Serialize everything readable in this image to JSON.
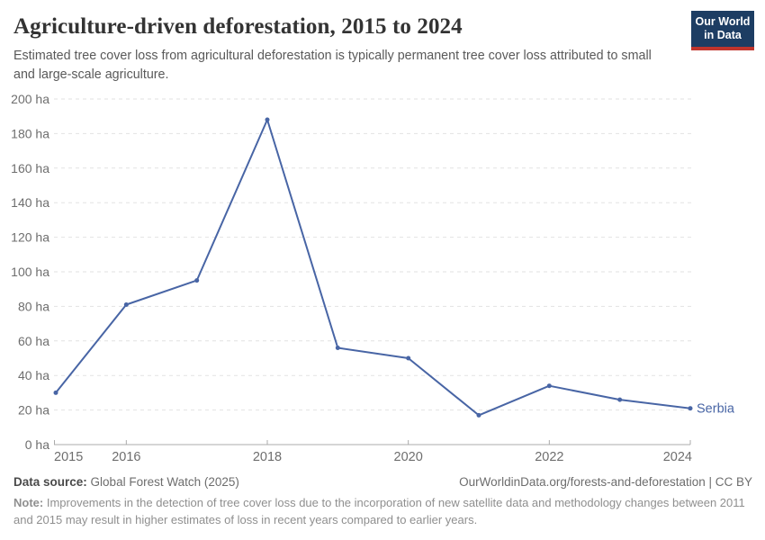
{
  "header": {
    "title": "Agriculture-driven deforestation, 2015 to 2024",
    "subtitle": "Estimated tree cover loss from agricultural deforestation is typically permanent tree cover loss attributed to small and large-scale agriculture.",
    "logo": {
      "line1": "Our World",
      "line2": "in Data"
    }
  },
  "chart_data": {
    "type": "line",
    "title": "Agriculture-driven deforestation, 2015 to 2024",
    "x": [
      2015,
      2016,
      2017,
      2018,
      2019,
      2020,
      2021,
      2022,
      2023,
      2024
    ],
    "series": [
      {
        "name": "Serbia",
        "values": [
          30,
          81,
          95,
          188,
          56,
          50,
          17,
          34,
          26,
          21
        ]
      }
    ],
    "unit": "ha",
    "ylim": [
      0,
      200
    ],
    "ytick_step": 20,
    "ytick_suffix": " ha",
    "xticks_labeled": [
      2015,
      2016,
      2018,
      2020,
      2022,
      2024
    ],
    "grid": true,
    "legend_position": "end-of-line",
    "end_label": "Serbia"
  },
  "footer": {
    "datasource_label": "Data source:",
    "datasource_value": "Global Forest Watch (2025)",
    "attribution": "OurWorldinData.org/forests-and-deforestation | CC BY",
    "note_label": "Note:",
    "note_text": "Improvements in the detection of tree cover loss due to the incorporation of new satellite data and methodology changes between 2011 and 2015 may result in higher estimates of loss in recent years compared to earlier years."
  },
  "colors": {
    "line": "#4865a5",
    "grid": "#e2e2e2",
    "axis": "#ababab",
    "tick_text": "#6e6e6e",
    "logo_navy": "#1d3d63",
    "logo_red": "#c0342c"
  }
}
